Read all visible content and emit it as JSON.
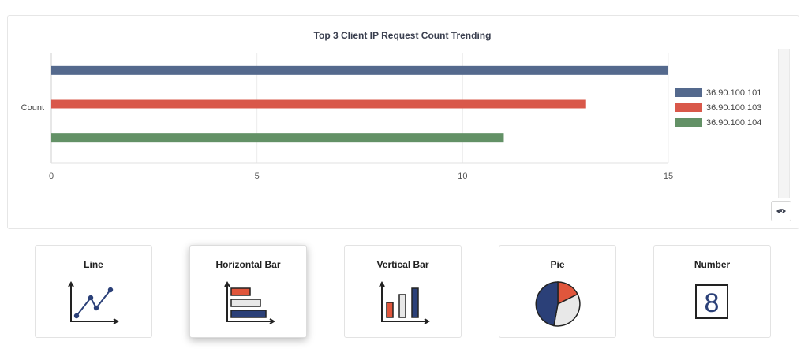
{
  "chart_data": {
    "type": "bar",
    "orientation": "horizontal",
    "title": "Top 3 Client IP Request Count Trending",
    "categories": [
      "Count"
    ],
    "series": [
      {
        "name": "36.90.100.101",
        "values": [
          15
        ],
        "color": "#54698d"
      },
      {
        "name": "36.90.100.103",
        "values": [
          13
        ],
        "color": "#d9584a"
      },
      {
        "name": "36.90.100.104",
        "values": [
          11
        ],
        "color": "#639166"
      }
    ],
    "xlim": [
      0,
      15
    ],
    "xticks": [
      0,
      5,
      10,
      15
    ],
    "grid": true,
    "legend": "right"
  },
  "panel": {
    "toggle_icon": "eye-icon"
  },
  "chart_types": [
    {
      "key": "line",
      "label": "Line",
      "icon": "line-chart-icon",
      "selected": false
    },
    {
      "key": "horizontal_bar",
      "label": "Horizontal Bar",
      "icon": "horizontal-bar-chart-icon",
      "selected": true
    },
    {
      "key": "vertical_bar",
      "label": "Vertical Bar",
      "icon": "vertical-bar-chart-icon",
      "selected": false
    },
    {
      "key": "pie",
      "label": "Pie",
      "icon": "pie-chart-icon",
      "selected": false
    },
    {
      "key": "number",
      "label": "Number",
      "icon": "number-icon",
      "icon_value": "8",
      "selected": false
    }
  ],
  "colors": {
    "navy": "#2b4078",
    "red": "#e0563c",
    "gray": "#e8e8e8",
    "stroke": "#222222"
  }
}
